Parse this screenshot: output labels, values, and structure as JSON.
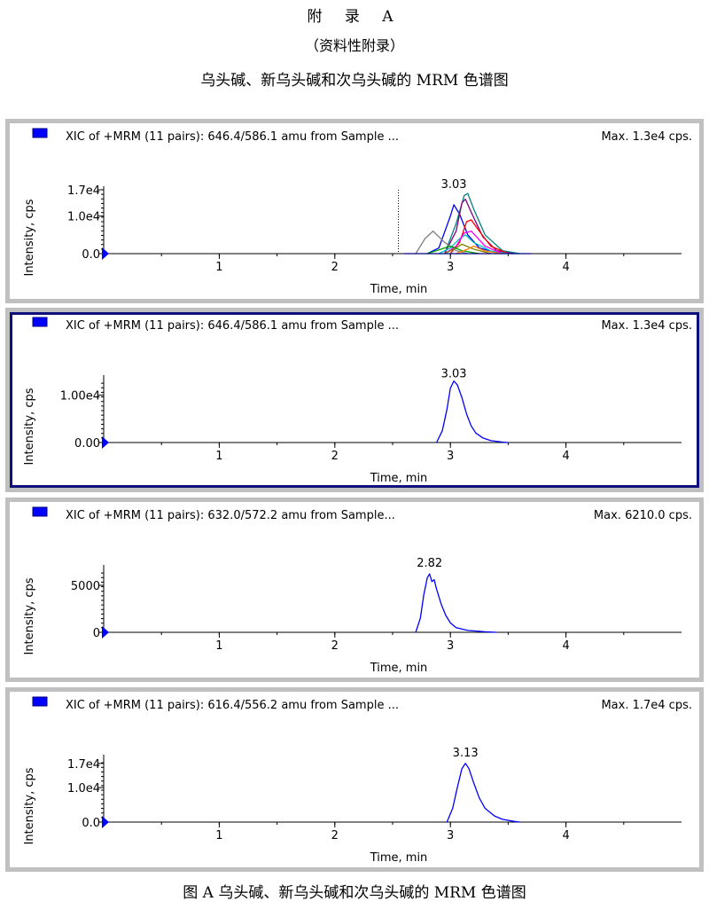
{
  "header": {
    "appendix": "附 录 A",
    "appendix_note": "（资料性附录）",
    "title": "乌头碱、新乌头碱和次乌头碱的 MRM 色谱图"
  },
  "caption": "图 A 乌头碱、新乌头碱和次乌头碱的 MRM 色谱图",
  "colors": {
    "frame_bg": "#c0c0c0",
    "selected_border": "#10107a",
    "legend_square": "#0000ff",
    "trace": "#0000ff",
    "overlay": [
      "#0000ff",
      "#008080",
      "#800080",
      "#ff0000",
      "#808080",
      "#00c0c0",
      "#ff00ff",
      "#808000",
      "#00a000",
      "#ff8000",
      "#000080"
    ]
  },
  "chart_data": [
    {
      "type": "line",
      "header": "XIC of +MRM (11 pairs): 646.4/586.1 amu from Sample ...",
      "max_label": "Max. 1.3e4 cps.",
      "xlabel": "Time, min",
      "ylabel": "Intensity, cps",
      "xlim": [
        0,
        5
      ],
      "ylim": [
        0,
        17000
      ],
      "x_ticks": [
        1,
        2,
        3,
        4
      ],
      "y_ticks": [
        {
          "v": 0,
          "l": "0.0"
        },
        {
          "v": 10000,
          "l": "1.0e4"
        },
        {
          "v": 17000,
          "l": "1.7e4"
        }
      ],
      "peak_label": {
        "x": 3.03,
        "y": 16500,
        "text": "3.03"
      },
      "dotted_marker_x": 2.55,
      "selected": false,
      "series": [
        {
          "x": [
            2.8,
            2.9,
            3.0,
            3.03,
            3.08,
            3.15,
            3.25,
            3.4,
            3.55
          ],
          "y": [
            0,
            1500,
            10000,
            13000,
            10500,
            5000,
            1500,
            300,
            0
          ]
        },
        {
          "x": [
            2.95,
            3.05,
            3.12,
            3.15,
            3.2,
            3.3,
            3.45,
            3.6
          ],
          "y": [
            0,
            8000,
            15500,
            16000,
            12000,
            5000,
            800,
            0
          ]
        },
        {
          "x": [
            2.95,
            3.05,
            3.1,
            3.13,
            3.18,
            3.28,
            3.4,
            3.55
          ],
          "y": [
            0,
            6000,
            13500,
            14500,
            11000,
            4500,
            800,
            0
          ]
        },
        {
          "x": [
            3.0,
            3.08,
            3.14,
            3.18,
            3.25,
            3.35,
            3.5
          ],
          "y": [
            0,
            3000,
            8500,
            9000,
            6000,
            2000,
            0
          ]
        },
        {
          "x": [
            2.7,
            2.78,
            2.85,
            2.95,
            3.05,
            3.15
          ],
          "y": [
            0,
            4000,
            6000,
            3000,
            800,
            0
          ]
        },
        {
          "x": [
            2.9,
            3.0,
            3.08,
            3.13,
            3.2,
            3.35,
            3.5
          ],
          "y": [
            0,
            1500,
            4000,
            5000,
            3000,
            700,
            0
          ]
        },
        {
          "x": [
            2.95,
            3.05,
            3.12,
            3.18,
            3.3,
            3.45
          ],
          "y": [
            0,
            2000,
            5500,
            6000,
            2000,
            0
          ]
        },
        {
          "x": [
            2.95,
            3.05,
            3.1,
            3.2,
            3.35
          ],
          "y": [
            0,
            1500,
            2500,
            1200,
            0
          ]
        },
        {
          "x": [
            2.8,
            2.9,
            3.0,
            3.1,
            3.25
          ],
          "y": [
            0,
            1000,
            2000,
            800,
            0
          ]
        },
        {
          "x": [
            3.05,
            3.15,
            3.2,
            3.3,
            3.45
          ],
          "y": [
            0,
            1200,
            2000,
            700,
            0
          ]
        },
        {
          "x": [
            2.6,
            3.7
          ],
          "y": [
            0,
            0
          ]
        }
      ]
    },
    {
      "type": "line",
      "header": "XIC of +MRM (11 pairs): 646.4/586.1 amu from Sample ...",
      "max_label": "Max. 1.3e4 cps.",
      "xlabel": "Time, min",
      "ylabel": "Intensity, cps",
      "xlim": [
        0,
        5
      ],
      "ylim": [
        0,
        13500
      ],
      "x_ticks": [
        1,
        2,
        3,
        4
      ],
      "y_ticks": [
        {
          "v": 0,
          "l": "0.00"
        },
        {
          "v": 10000,
          "l": "1.00e4"
        }
      ],
      "peak_label": {
        "x": 3.03,
        "y": 13000,
        "text": "3.03"
      },
      "selected": true,
      "series": [
        {
          "x": [
            2.88,
            2.93,
            2.97,
            3.0,
            3.03,
            3.06,
            3.1,
            3.14,
            3.18,
            3.22,
            3.28,
            3.35,
            3.45,
            3.5
          ],
          "y": [
            0,
            2500,
            7000,
            11500,
            13000,
            12200,
            9500,
            6000,
            3500,
            2000,
            1000,
            400,
            100,
            0
          ]
        }
      ]
    },
    {
      "type": "line",
      "header": "XIC of +MRM (11 pairs): 632.0/572.2 amu from Sample...",
      "max_label": "Max. 6210.0 cps.",
      "xlabel": "Time, min",
      "ylabel": "Intensity, cps",
      "xlim": [
        0,
        5
      ],
      "ylim": [
        0,
        6800
      ],
      "x_ticks": [
        1,
        2,
        3,
        4
      ],
      "y_ticks": [
        {
          "v": 0,
          "l": "0"
        },
        {
          "v": 5000,
          "l": "5000"
        }
      ],
      "peak_label": {
        "x": 2.82,
        "y": 6600,
        "text": "2.82"
      },
      "selected": false,
      "series": [
        {
          "x": [
            2.7,
            2.74,
            2.77,
            2.8,
            2.82,
            2.84,
            2.86,
            2.88,
            2.92,
            2.96,
            3.0,
            3.05,
            3.15,
            3.3,
            3.4
          ],
          "y": [
            0,
            1500,
            4000,
            5800,
            6210,
            5400,
            5600,
            4600,
            3000,
            1800,
            1000,
            500,
            200,
            60,
            0
          ]
        }
      ]
    },
    {
      "type": "line",
      "header": "XIC of +MRM (11 pairs): 616.4/556.2 amu from Sample ...",
      "max_label": "Max. 1.7e4 cps.",
      "xlabel": "Time, min",
      "ylabel": "Intensity, cps",
      "xlim": [
        0,
        5
      ],
      "ylim": [
        0,
        18500
      ],
      "x_ticks": [
        1,
        2,
        3,
        4
      ],
      "y_ticks": [
        {
          "v": 0,
          "l": "0.0"
        },
        {
          "v": 10000,
          "l": "1.0e4"
        },
        {
          "v": 17000,
          "l": "1.7e4"
        }
      ],
      "peak_label": {
        "x": 3.13,
        "y": 18000,
        "text": "3.13"
      },
      "selected": false,
      "series": [
        {
          "x": [
            2.97,
            3.02,
            3.06,
            3.1,
            3.13,
            3.16,
            3.2,
            3.25,
            3.3,
            3.38,
            3.45,
            3.55,
            3.6
          ],
          "y": [
            0,
            4000,
            10000,
            15500,
            17000,
            15500,
            11500,
            7000,
            4000,
            1800,
            800,
            200,
            0
          ]
        }
      ]
    }
  ]
}
